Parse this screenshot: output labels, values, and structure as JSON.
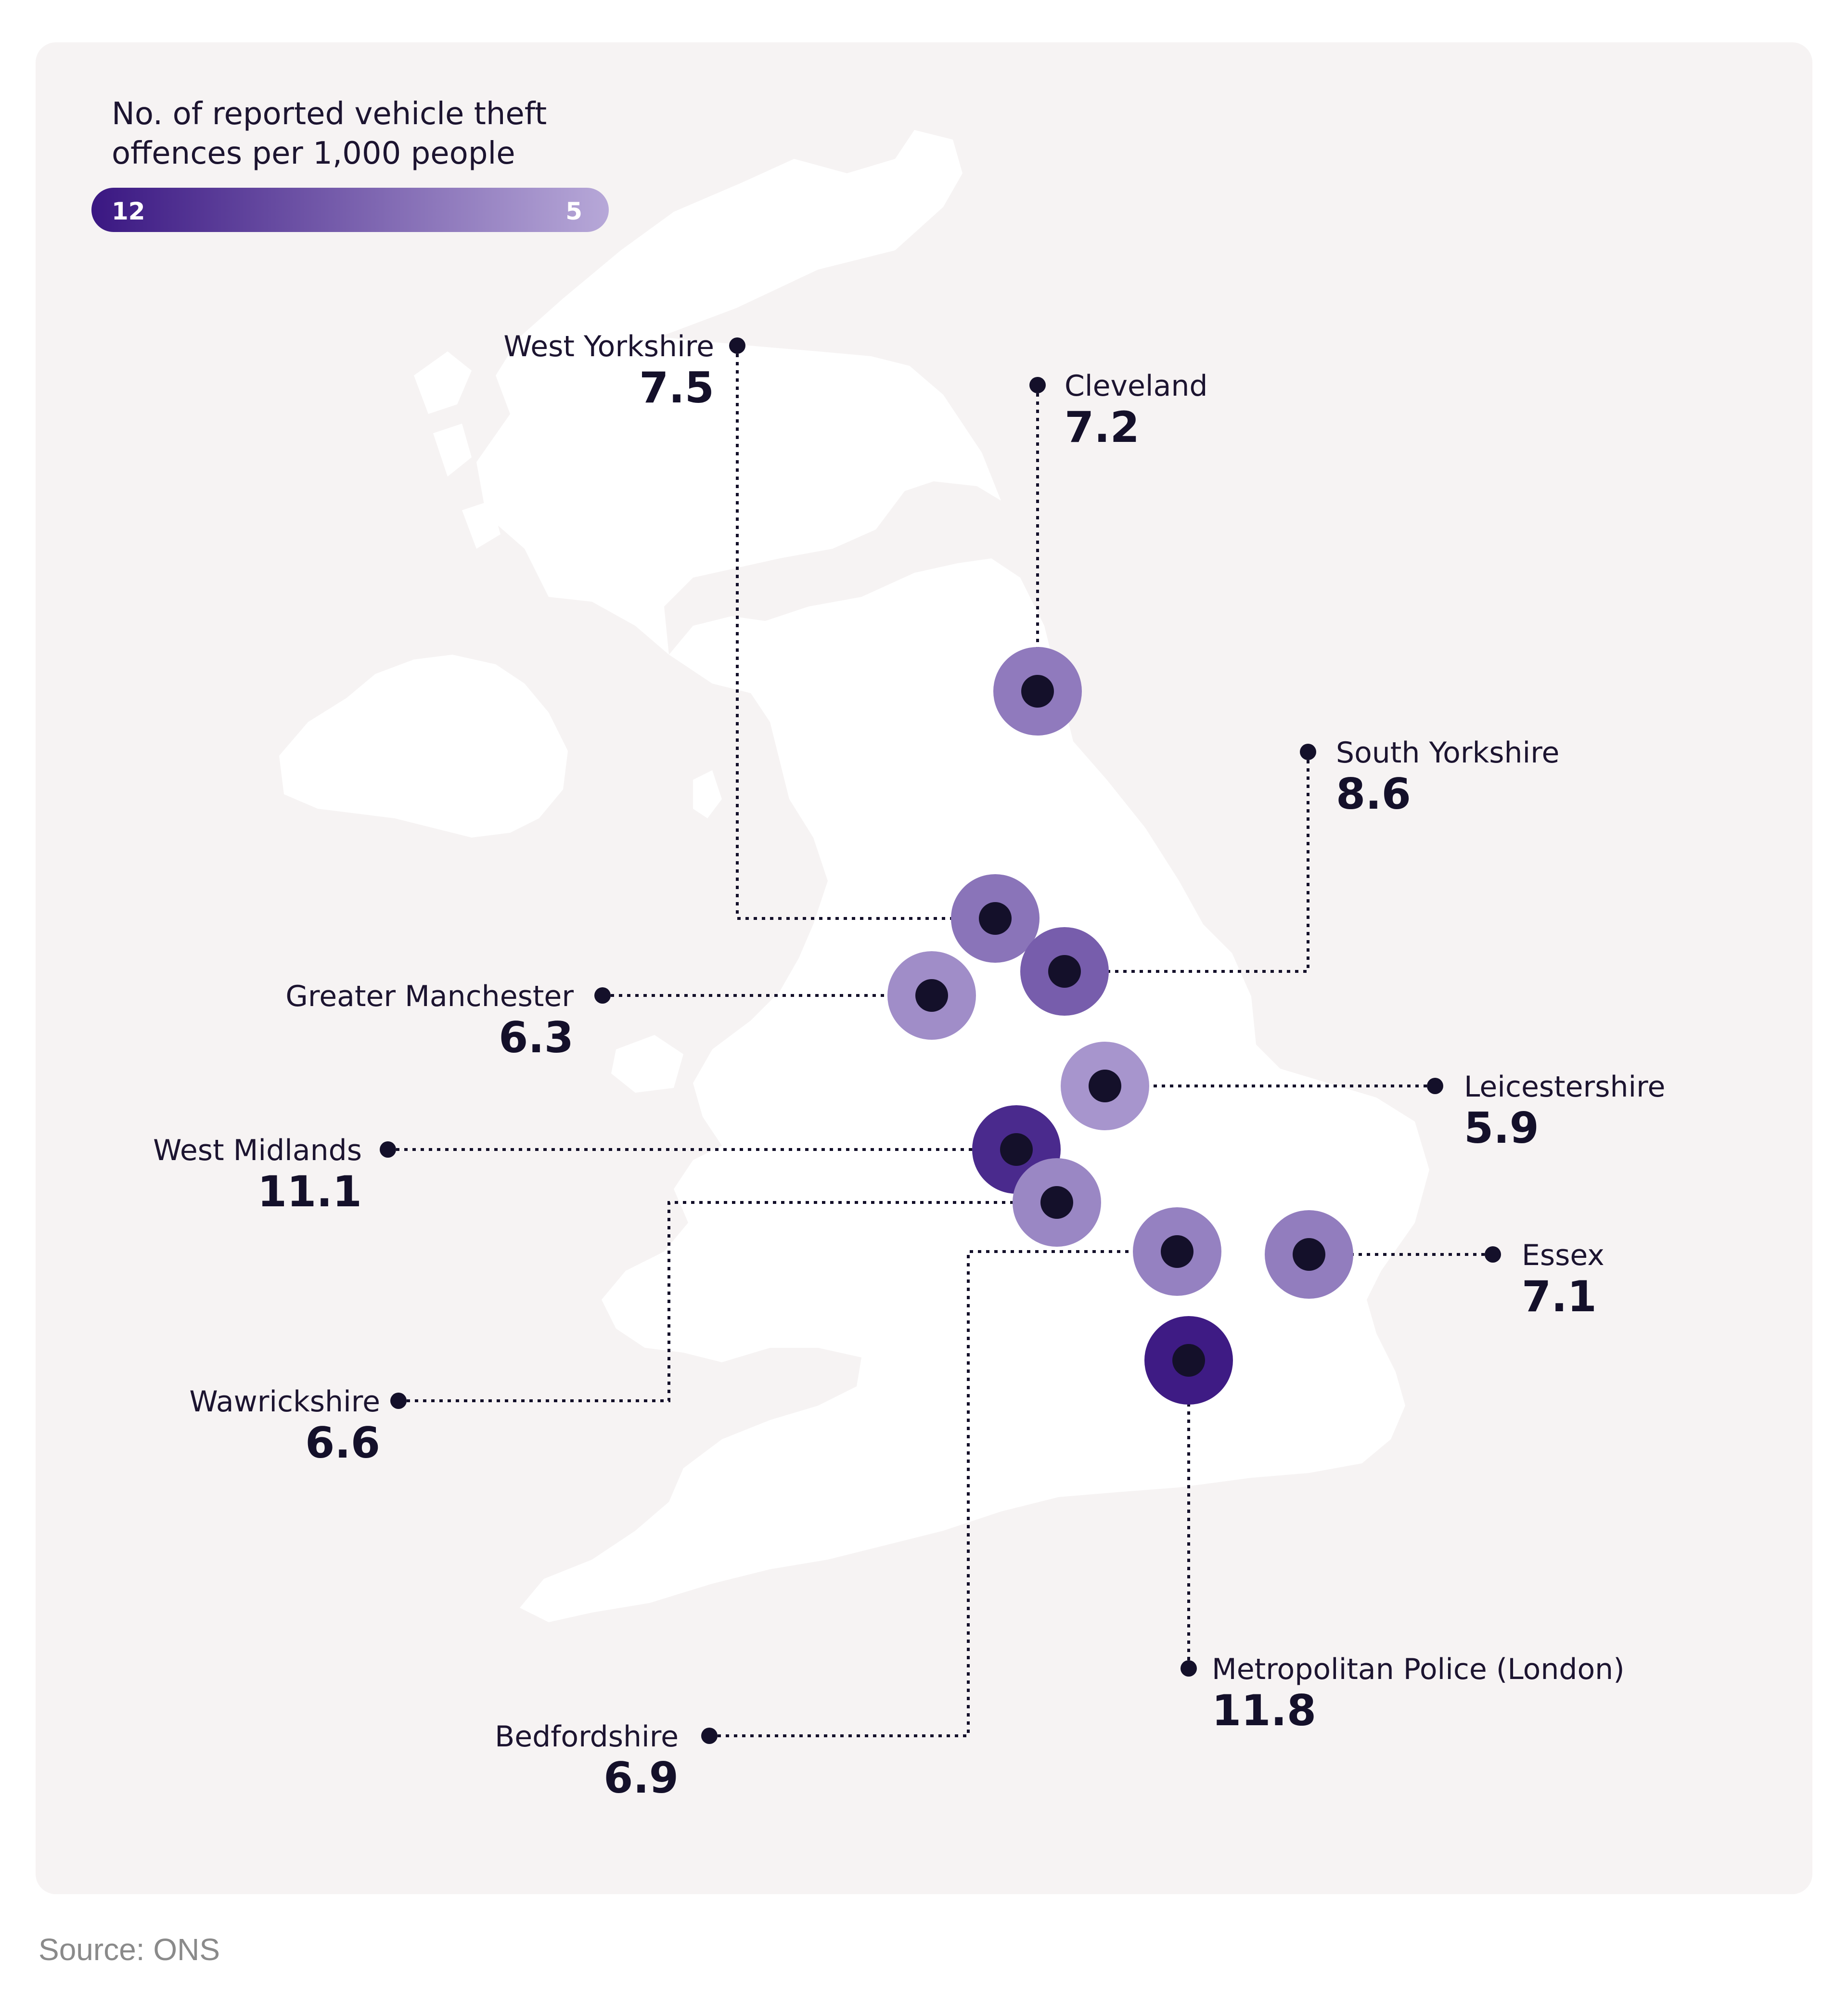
{
  "legend": {
    "title_line1": "No. of reported vehicle theft",
    "title_line2": "offences per 1,000 people",
    "high_label": "12",
    "low_label": "5",
    "high_value": 12,
    "low_value": 5,
    "high_color": "#3a1782",
    "low_color": "#b7a8d8"
  },
  "source": "Source: ONS",
  "colors": {
    "card_background": "#f6f3f3",
    "land": "#ffffff",
    "marker_dot": "#14102a",
    "text": "#1c1430"
  },
  "map_region": "Great Britain and Northern Ireland",
  "regions": [
    {
      "name": "West Yorkshire",
      "value": "7.5"
    },
    {
      "name": "Cleveland",
      "value": "7.2"
    },
    {
      "name": "South Yorkshire",
      "value": "8.6"
    },
    {
      "name": "Greater Manchester",
      "value": "6.3"
    },
    {
      "name": "Leicestershire",
      "value": "5.9"
    },
    {
      "name": "West Midlands",
      "value": "11.1"
    },
    {
      "name": "Essex",
      "value": "7.1"
    },
    {
      "name": "Wawrickshire",
      "value": "6.6"
    },
    {
      "name": "Metropolitan Police (London)",
      "value": "11.8"
    },
    {
      "name": "Bedfordshire",
      "value": "6.9"
    }
  ]
}
